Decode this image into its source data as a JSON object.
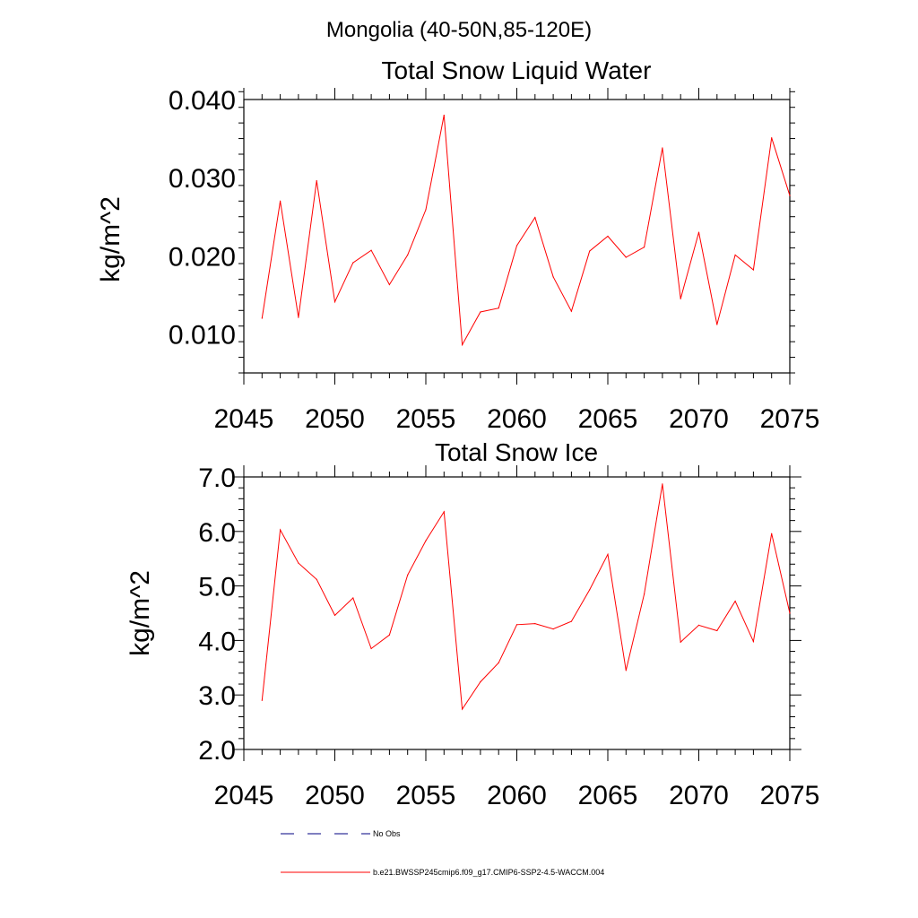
{
  "figure_title": "Mongolia (40-50N,85-120E)",
  "colors": {
    "model": "#ff0000",
    "obs": "#000080",
    "axes": "#000000"
  },
  "legend": {
    "entries": [
      {
        "label": "No Obs",
        "style": "dashed",
        "color": "#000080"
      },
      {
        "label": "b.e21.BWSSP245cmip6.f09_g17.CMIP6-SSP2-4.5-WACCM.004",
        "style": "solid",
        "color": "#ff0000"
      }
    ]
  },
  "chart_data": [
    {
      "type": "line",
      "title": "Total Snow Liquid Water",
      "xlabel": "",
      "ylabel": "kg/m^2",
      "xlim": [
        2045,
        2075
      ],
      "ylim": [
        0.005,
        0.04
      ],
      "xticks": [
        2045,
        2050,
        2055,
        2060,
        2065,
        2070,
        2075
      ],
      "yticks": [
        0.01,
        0.02,
        0.03,
        0.04
      ],
      "ytick_labels": [
        "0.010",
        "0.020",
        "0.030",
        "0.040"
      ],
      "grid": false,
      "series": [
        {
          "x": [
            2046,
            2047,
            2048,
            2049,
            2050,
            2051,
            2052,
            2053,
            2054,
            2055,
            2056,
            2057,
            2058,
            2059,
            2060,
            2061,
            2062,
            2063,
            2064,
            2065,
            2066,
            2067,
            2068,
            2069,
            2070,
            2071,
            2072,
            2073,
            2074,
            2075
          ],
          "values": [
            0.012,
            0.027,
            0.0121,
            0.0296,
            0.0141,
            0.0191,
            0.0207,
            0.0163,
            0.0201,
            0.0259,
            0.038,
            0.0086,
            0.0128,
            0.0133,
            0.0213,
            0.0249,
            0.0173,
            0.0129,
            0.0206,
            0.0225,
            0.0198,
            0.0211,
            0.0338,
            0.0145,
            0.023,
            0.0112,
            0.0201,
            0.0182,
            0.0351,
            0.0277
          ]
        }
      ]
    },
    {
      "type": "line",
      "title": "Total Snow Ice",
      "xlabel": "",
      "ylabel": "kg/m^2",
      "xlim": [
        2045,
        2075
      ],
      "ylim": [
        2.0,
        7.0
      ],
      "xticks": [
        2045,
        2050,
        2055,
        2060,
        2065,
        2070,
        2075
      ],
      "yticks": [
        2.0,
        3.0,
        4.0,
        5.0,
        6.0,
        7.0
      ],
      "ytick_labels": [
        "2.0",
        "3.0",
        "4.0",
        "5.0",
        "6.0",
        "7.0"
      ],
      "grid": false,
      "series": [
        {
          "x": [
            2046,
            2047,
            2048,
            2049,
            2050,
            2051,
            2052,
            2053,
            2054,
            2055,
            2056,
            2057,
            2058,
            2059,
            2060,
            2061,
            2062,
            2063,
            2064,
            2065,
            2066,
            2067,
            2068,
            2069,
            2070,
            2071,
            2072,
            2073,
            2074,
            2075
          ],
          "values": [
            2.9,
            6.03,
            5.42,
            5.12,
            4.46,
            4.78,
            3.85,
            4.1,
            5.2,
            5.83,
            6.36,
            2.74,
            3.24,
            3.59,
            4.29,
            4.31,
            4.21,
            4.35,
            4.93,
            5.58,
            3.45,
            4.85,
            6.87,
            3.97,
            4.28,
            4.18,
            4.72,
            3.98,
            5.96,
            4.5
          ]
        }
      ]
    }
  ]
}
